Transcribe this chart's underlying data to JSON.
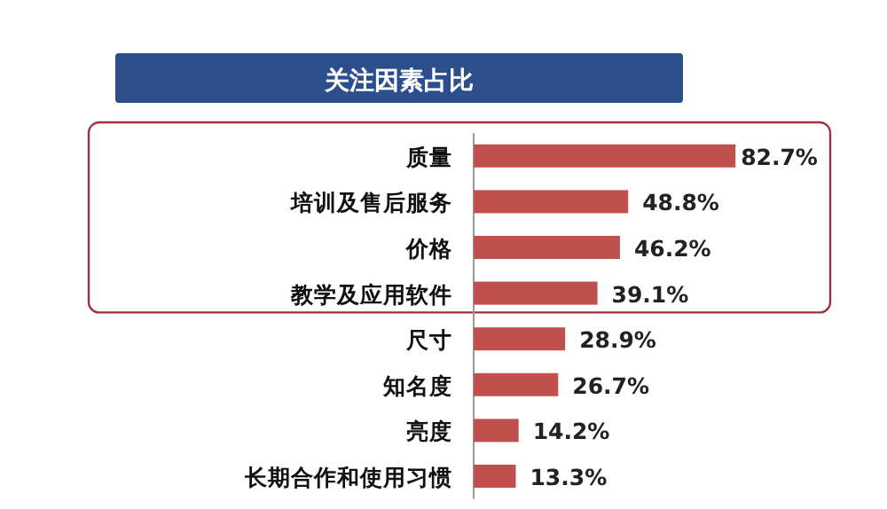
{
  "chart_data": {
    "type": "bar",
    "orientation": "horizontal",
    "title": "关注因素占比",
    "categories": [
      "质量",
      "培训及售后服务",
      "价格",
      "教学及应用软件",
      "尺寸",
      "知名度",
      "亮度",
      "长期合作和使用习惯"
    ],
    "values": [
      82.7,
      48.8,
      46.2,
      39.1,
      28.9,
      26.7,
      14.2,
      13.3
    ],
    "value_labels": [
      "82.7%",
      "48.8%",
      "46.2%",
      "39.1%",
      "28.9%",
      "26.7%",
      "14.2%",
      "13.3%"
    ],
    "color": "#c0504d",
    "tick_labels": "y"
  }
}
